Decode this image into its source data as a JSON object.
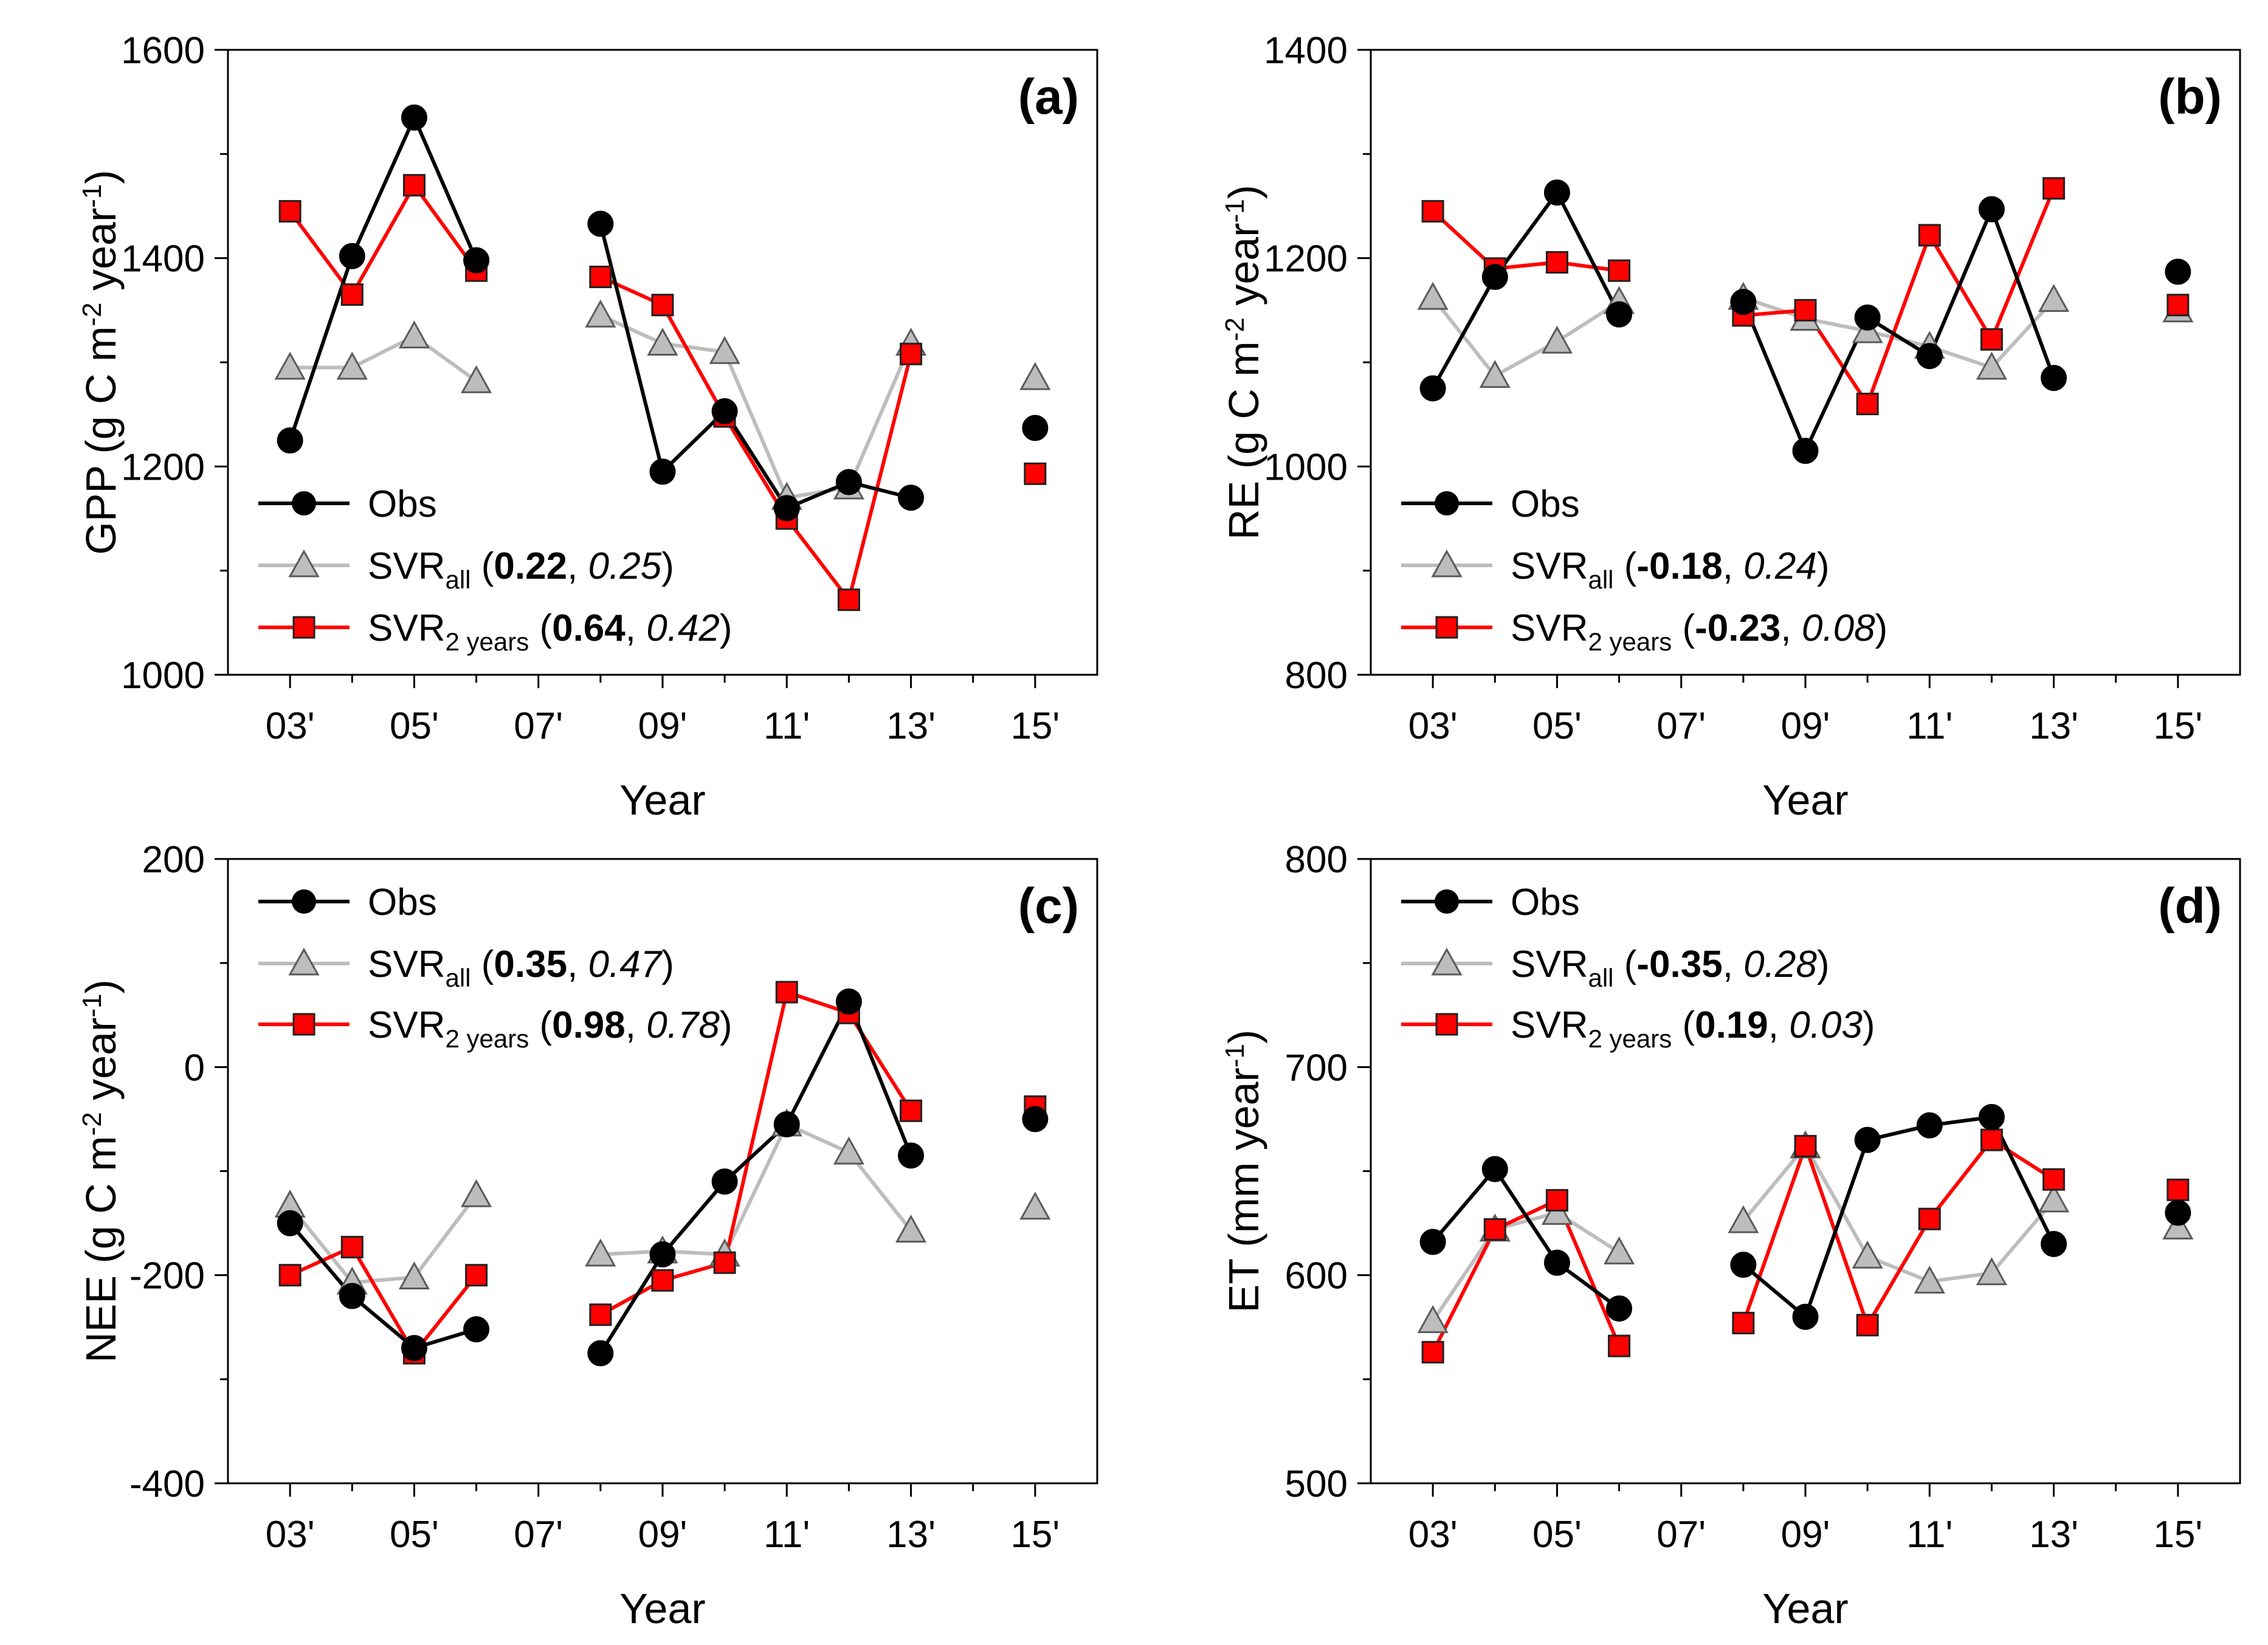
{
  "chart_data": [
    {
      "type": "line",
      "panel_label": "(a)",
      "ylabel": "GPP (g C m⁻² year⁻¹)",
      "ylabel_parts": [
        "GPP (g C m",
        "-2",
        " year",
        "-1",
        ")"
      ],
      "xlabel": "Year",
      "ylim": [
        1000,
        1600
      ],
      "yticks": [
        "1000",
        "1200",
        "1400",
        "1600"
      ],
      "xticks": [
        "03'",
        "05'",
        "07'",
        "09'",
        "11'",
        "13'",
        "15'"
      ],
      "x": [
        2003,
        2004,
        2005,
        2006,
        2007,
        2008,
        2009,
        2010,
        2011,
        2012,
        2013,
        2014,
        2015
      ],
      "legend_position": "bottom-left",
      "series": [
        {
          "name": "Obs",
          "label": "Obs",
          "sub": "",
          "stat1": "",
          "stat2": "",
          "color": "#000000",
          "marker": "circle",
          "values": [
            1225,
            1402,
            1535,
            1398,
            null,
            1433,
            1195,
            1253,
            1160,
            1185,
            1170,
            null,
            1237
          ]
        },
        {
          "name": "SVR all",
          "label": "SVR",
          "sub": "all",
          "stat1": "0.22",
          "stat2": "0.25",
          "color": "#bdbdbd",
          "marker": "triangle",
          "values": [
            1295,
            1295,
            1325,
            1282,
            null,
            1345,
            1318,
            1310,
            1170,
            1180,
            1318,
            null,
            1285
          ]
        },
        {
          "name": "SVR 2 years",
          "label": "SVR",
          "sub": "2 years",
          "stat1": "0.64",
          "stat2": "0.42",
          "color": "#ff0000",
          "marker": "square",
          "values": [
            1445,
            1365,
            1470,
            1388,
            null,
            1382,
            1355,
            1248,
            1150,
            1072,
            1308,
            null,
            1193
          ]
        }
      ]
    },
    {
      "type": "line",
      "panel_label": "(b)",
      "ylabel": "RE (g C m⁻² year⁻¹)",
      "ylabel_parts": [
        "RE (g C m",
        "-2",
        " year",
        "-1",
        ")"
      ],
      "xlabel": "Year",
      "ylim": [
        800,
        1400
      ],
      "yticks": [
        "800",
        "1000",
        "1200",
        "1400"
      ],
      "xticks": [
        "03'",
        "05'",
        "07'",
        "09'",
        "11'",
        "13'",
        "15'"
      ],
      "x": [
        2003,
        2004,
        2005,
        2006,
        2007,
        2008,
        2009,
        2010,
        2011,
        2012,
        2013,
        2014,
        2015
      ],
      "legend_position": "bottom-left",
      "series": [
        {
          "name": "Obs",
          "label": "Obs",
          "sub": "",
          "stat1": "",
          "stat2": "",
          "color": "#000000",
          "marker": "circle",
          "values": [
            1075,
            1182,
            1263,
            1146,
            null,
            1158,
            1015,
            1143,
            1106,
            1247,
            1085,
            null,
            1187
          ]
        },
        {
          "name": "SVR all",
          "label": "SVR",
          "sub": "all",
          "stat1": "-0.18",
          "stat2": "0.24",
          "color": "#bdbdbd",
          "marker": "triangle",
          "values": [
            1162,
            1087,
            1120,
            1158,
            null,
            1162,
            1142,
            1130,
            1115,
            1095,
            1160,
            null,
            1150
          ]
        },
        {
          "name": "SVR 2 years",
          "label": "SVR",
          "sub": "2 years",
          "stat1": "-0.23",
          "stat2": "0.08",
          "color": "#ff0000",
          "marker": "square",
          "values": [
            1245,
            1190,
            1196,
            1188,
            null,
            1145,
            1150,
            1060,
            1222,
            1122,
            1267,
            null,
            1155
          ]
        }
      ]
    },
    {
      "type": "line",
      "panel_label": "(c)",
      "ylabel": "NEE (g C m⁻² year⁻¹)",
      "ylabel_parts": [
        "NEE (g C m",
        "-2",
        " year",
        "-1",
        ")"
      ],
      "xlabel": "Year",
      "ylim": [
        -400,
        200
      ],
      "yticks": [
        "-400",
        "-200",
        "0",
        "200"
      ],
      "xticks": [
        "03'",
        "05'",
        "07'",
        "09'",
        "11'",
        "13'",
        "15'"
      ],
      "x": [
        2003,
        2004,
        2005,
        2006,
        2007,
        2008,
        2009,
        2010,
        2011,
        2012,
        2013,
        2014,
        2015
      ],
      "legend_position": "top-left",
      "series": [
        {
          "name": "Obs",
          "label": "Obs",
          "sub": "",
          "stat1": "",
          "stat2": "",
          "color": "#000000",
          "marker": "circle",
          "values": [
            -150,
            -220,
            -270,
            -252,
            null,
            -275,
            -180,
            -110,
            -55,
            63,
            -85,
            null,
            -50
          ]
        },
        {
          "name": "SVR all",
          "label": "SVR",
          "sub": "all",
          "stat1": "0.35",
          "stat2": "0.47",
          "color": "#bdbdbd",
          "marker": "triangle",
          "values": [
            -133,
            -207,
            -202,
            -123,
            null,
            -180,
            -177,
            -180,
            -55,
            -82,
            -157,
            null,
            -135
          ]
        },
        {
          "name": "SVR 2 years",
          "label": "SVR",
          "sub": "2 years",
          "stat1": "0.98",
          "stat2": "0.78",
          "color": "#ff0000",
          "marker": "square",
          "values": [
            -200,
            -173,
            -275,
            -200,
            null,
            -238,
            -205,
            -188,
            72,
            52,
            -42,
            null,
            -38
          ]
        }
      ]
    },
    {
      "type": "line",
      "panel_label": "(d)",
      "ylabel": "ET (mm year⁻¹)",
      "ylabel_parts": [
        "ET (mm year",
        "-1",
        ")",
        "",
        ""
      ],
      "xlabel": "Year",
      "ylim": [
        500,
        800
      ],
      "yticks": [
        "500",
        "600",
        "700",
        "800"
      ],
      "xticks": [
        "03'",
        "05'",
        "07'",
        "09'",
        "11'",
        "13'",
        "15'"
      ],
      "x": [
        2003,
        2004,
        2005,
        2006,
        2007,
        2008,
        2009,
        2010,
        2011,
        2012,
        2013,
        2014,
        2015
      ],
      "legend_position": "top-left",
      "series": [
        {
          "name": "Obs",
          "label": "Obs",
          "sub": "",
          "stat1": "",
          "stat2": "",
          "color": "#000000",
          "marker": "circle",
          "values": [
            616,
            651,
            606,
            584,
            null,
            605,
            580,
            665,
            672,
            676,
            615,
            null,
            630
          ]
        },
        {
          "name": "SVR all",
          "label": "SVR",
          "sub": "all",
          "stat1": "-0.35",
          "stat2": "0.28",
          "color": "#bdbdbd",
          "marker": "triangle",
          "values": [
            578,
            622,
            630,
            611,
            null,
            626,
            662,
            609,
            597,
            601,
            636,
            null,
            623
          ]
        },
        {
          "name": "SVR 2 years",
          "label": "SVR",
          "sub": "2 years",
          "stat1": "0.19",
          "stat2": "0.03",
          "color": "#ff0000",
          "marker": "square",
          "values": [
            563,
            622,
            636,
            566,
            null,
            577,
            662,
            576,
            627,
            665,
            646,
            null,
            641
          ]
        }
      ]
    }
  ]
}
